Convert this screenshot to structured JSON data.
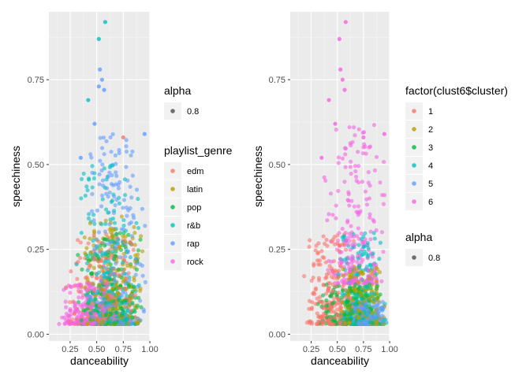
{
  "chart_data": [
    {
      "type": "scatter",
      "xlabel": "danceability",
      "ylabel": "speechiness",
      "xlim": [
        0.05,
        1.0
      ],
      "ylim": [
        -0.02,
        0.95
      ],
      "x_ticks": [
        0.25,
        0.5,
        0.75,
        1.0
      ],
      "x_tick_labels": [
        "0.25",
        "0.50",
        "0.75",
        "1.00"
      ],
      "y_ticks": [
        0.0,
        0.25,
        0.5,
        0.75
      ],
      "y_tick_labels": [
        "0.00",
        "0.25",
        "0.50",
        "0.75"
      ],
      "grid": true,
      "legends": [
        {
          "title": "alpha",
          "entries": [
            {
              "label": "0.8",
              "color": "#4d4d4d"
            }
          ]
        },
        {
          "title": "playlist_genre",
          "entries": [
            {
              "label": "edm",
              "color": "#F8766D"
            },
            {
              "label": "latin",
              "color": "#B79F00"
            },
            {
              "label": "pop",
              "color": "#00BA38"
            },
            {
              "label": "r&b",
              "color": "#00BFC4"
            },
            {
              "label": "rap",
              "color": "#619CFF"
            },
            {
              "label": "rock",
              "color": "#F564E3"
            }
          ]
        }
      ],
      "series": [
        {
          "name": "edm",
          "color": "#F8766D",
          "x_range": [
            0.2,
            0.9
          ],
          "y_range": [
            0.03,
            0.3
          ]
        },
        {
          "name": "latin",
          "color": "#B79F00",
          "x_range": [
            0.35,
            0.95
          ],
          "y_range": [
            0.03,
            0.35
          ]
        },
        {
          "name": "pop",
          "color": "#00BA38",
          "x_range": [
            0.3,
            0.95
          ],
          "y_range": [
            0.03,
            0.3
          ]
        },
        {
          "name": "r&b",
          "color": "#00BFC4",
          "x_range": [
            0.3,
            0.95
          ],
          "y_range": [
            0.03,
            0.5
          ]
        },
        {
          "name": "rap",
          "color": "#619CFF",
          "x_range": [
            0.4,
            0.97
          ],
          "y_range": [
            0.03,
            0.6
          ]
        },
        {
          "name": "rock",
          "color": "#F564E3",
          "x_range": [
            0.1,
            0.7
          ],
          "y_range": [
            0.03,
            0.15
          ]
        }
      ],
      "highlight_points": [
        {
          "x": 0.58,
          "y": 0.92,
          "series": "r&b"
        },
        {
          "x": 0.52,
          "y": 0.87,
          "series": "r&b"
        },
        {
          "x": 0.53,
          "y": 0.78,
          "series": "rap"
        },
        {
          "x": 0.55,
          "y": 0.75,
          "series": "rap"
        },
        {
          "x": 0.52,
          "y": 0.73,
          "series": "rap"
        },
        {
          "x": 0.42,
          "y": 0.69,
          "series": "r&b"
        },
        {
          "x": 0.57,
          "y": 0.72,
          "series": "rap"
        },
        {
          "x": 0.48,
          "y": 0.62,
          "series": "rap"
        },
        {
          "x": 0.75,
          "y": 0.58,
          "series": "edm"
        },
        {
          "x": 0.95,
          "y": 0.59,
          "series": "rap"
        },
        {
          "x": 0.35,
          "y": 0.52,
          "series": "rap"
        }
      ]
    },
    {
      "type": "scatter",
      "xlabel": "danceability",
      "ylabel": "speechiness",
      "xlim": [
        0.05,
        1.0
      ],
      "ylim": [
        -0.02,
        0.95
      ],
      "x_ticks": [
        0.25,
        0.5,
        0.75,
        1.0
      ],
      "x_tick_labels": [
        "0.25",
        "0.50",
        "0.75",
        "1.00"
      ],
      "y_ticks": [
        0.0,
        0.25,
        0.5,
        0.75
      ],
      "y_tick_labels": [
        "0.00",
        "0.25",
        "0.50",
        "0.75"
      ],
      "grid": true,
      "legends": [
        {
          "title": "factor(clust6$cluster)",
          "entries": [
            {
              "label": "1",
              "color": "#F8766D"
            },
            {
              "label": "2",
              "color": "#B79F00"
            },
            {
              "label": "3",
              "color": "#00BA38"
            },
            {
              "label": "4",
              "color": "#00BFC4"
            },
            {
              "label": "5",
              "color": "#619CFF"
            },
            {
              "label": "6",
              "color": "#F564E3"
            }
          ]
        },
        {
          "title": "alpha",
          "entries": [
            {
              "label": "0.8",
              "color": "#4d4d4d"
            }
          ]
        }
      ],
      "series": [
        {
          "name": "1",
          "color": "#F8766D",
          "x_range": [
            0.15,
            0.75
          ],
          "y_range": [
            0.03,
            0.3
          ]
        },
        {
          "name": "2",
          "color": "#B79F00",
          "x_range": [
            0.5,
            0.97
          ],
          "y_range": [
            0.03,
            0.2
          ]
        },
        {
          "name": "3",
          "color": "#00BA38",
          "x_range": [
            0.3,
            0.95
          ],
          "y_range": [
            0.03,
            0.15
          ]
        },
        {
          "name": "4",
          "color": "#00BFC4",
          "x_range": [
            0.5,
            0.97
          ],
          "y_range": [
            0.03,
            0.3
          ]
        },
        {
          "name": "5",
          "color": "#619CFF",
          "x_range": [
            0.6,
            0.97
          ],
          "y_range": [
            0.03,
            0.1
          ]
        },
        {
          "name": "6",
          "color": "#F564E3",
          "x_range": [
            0.35,
            0.97
          ],
          "y_range": [
            0.15,
            0.62
          ]
        }
      ],
      "highlight_points": [
        {
          "x": 0.58,
          "y": 0.92,
          "series": "6"
        },
        {
          "x": 0.52,
          "y": 0.87,
          "series": "6"
        },
        {
          "x": 0.53,
          "y": 0.78,
          "series": "6"
        },
        {
          "x": 0.55,
          "y": 0.75,
          "series": "6"
        },
        {
          "x": 0.42,
          "y": 0.69,
          "series": "6"
        },
        {
          "x": 0.57,
          "y": 0.72,
          "series": "6"
        },
        {
          "x": 0.48,
          "y": 0.62,
          "series": "6"
        },
        {
          "x": 0.75,
          "y": 0.58,
          "series": "6"
        },
        {
          "x": 0.95,
          "y": 0.59,
          "series": "6"
        },
        {
          "x": 0.35,
          "y": 0.52,
          "series": "6"
        }
      ]
    }
  ]
}
